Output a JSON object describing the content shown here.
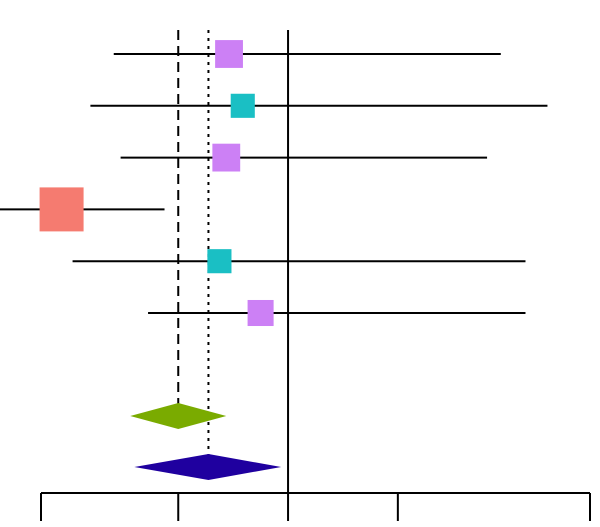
{
  "chart_data": {
    "type": "forest",
    "title": "",
    "xlabel": "",
    "ylabel": "",
    "grid": false,
    "legend": "none",
    "xlim": [
      -1.4,
      2.6
    ],
    "axis_ticks": [
      -1.4,
      -0.4,
      0.4,
      1.2,
      2.6
    ],
    "no_effect_line": 0.4,
    "reference_lines": [
      {
        "name": "",
        "x": -0.4,
        "style": "dashed"
      },
      {
        "name": "",
        "x": -0.18,
        "style": "dotted"
      }
    ],
    "studies": [
      {
        "estimate": -0.03,
        "lower": -0.87,
        "upper": 1.95,
        "weight": 0.4,
        "color": "#cc80f5"
      },
      {
        "estimate": 0.07,
        "lower": -1.04,
        "upper": 2.29,
        "weight": 0.3,
        "color": "#1abfc4"
      },
      {
        "estimate": -0.05,
        "lower": -0.82,
        "upper": 1.85,
        "weight": 0.4,
        "color": "#cc80f5"
      },
      {
        "estimate": -1.25,
        "lower": -1.92,
        "upper": -0.5,
        "weight": 1.0,
        "color": "#f57b70"
      },
      {
        "estimate": -0.1,
        "lower": -1.17,
        "upper": 2.13,
        "weight": 0.3,
        "color": "#1abfc4"
      },
      {
        "estimate": 0.2,
        "lower": -0.62,
        "upper": 2.13,
        "weight": 0.35,
        "color": "#cc80f5"
      }
    ],
    "summaries": [
      {
        "estimate": -0.4,
        "lower": -0.75,
        "upper": -0.05,
        "color": "#7aab00"
      },
      {
        "estimate": -0.18,
        "lower": -0.72,
        "upper": 0.35,
        "color": "#1f009f"
      }
    ]
  }
}
